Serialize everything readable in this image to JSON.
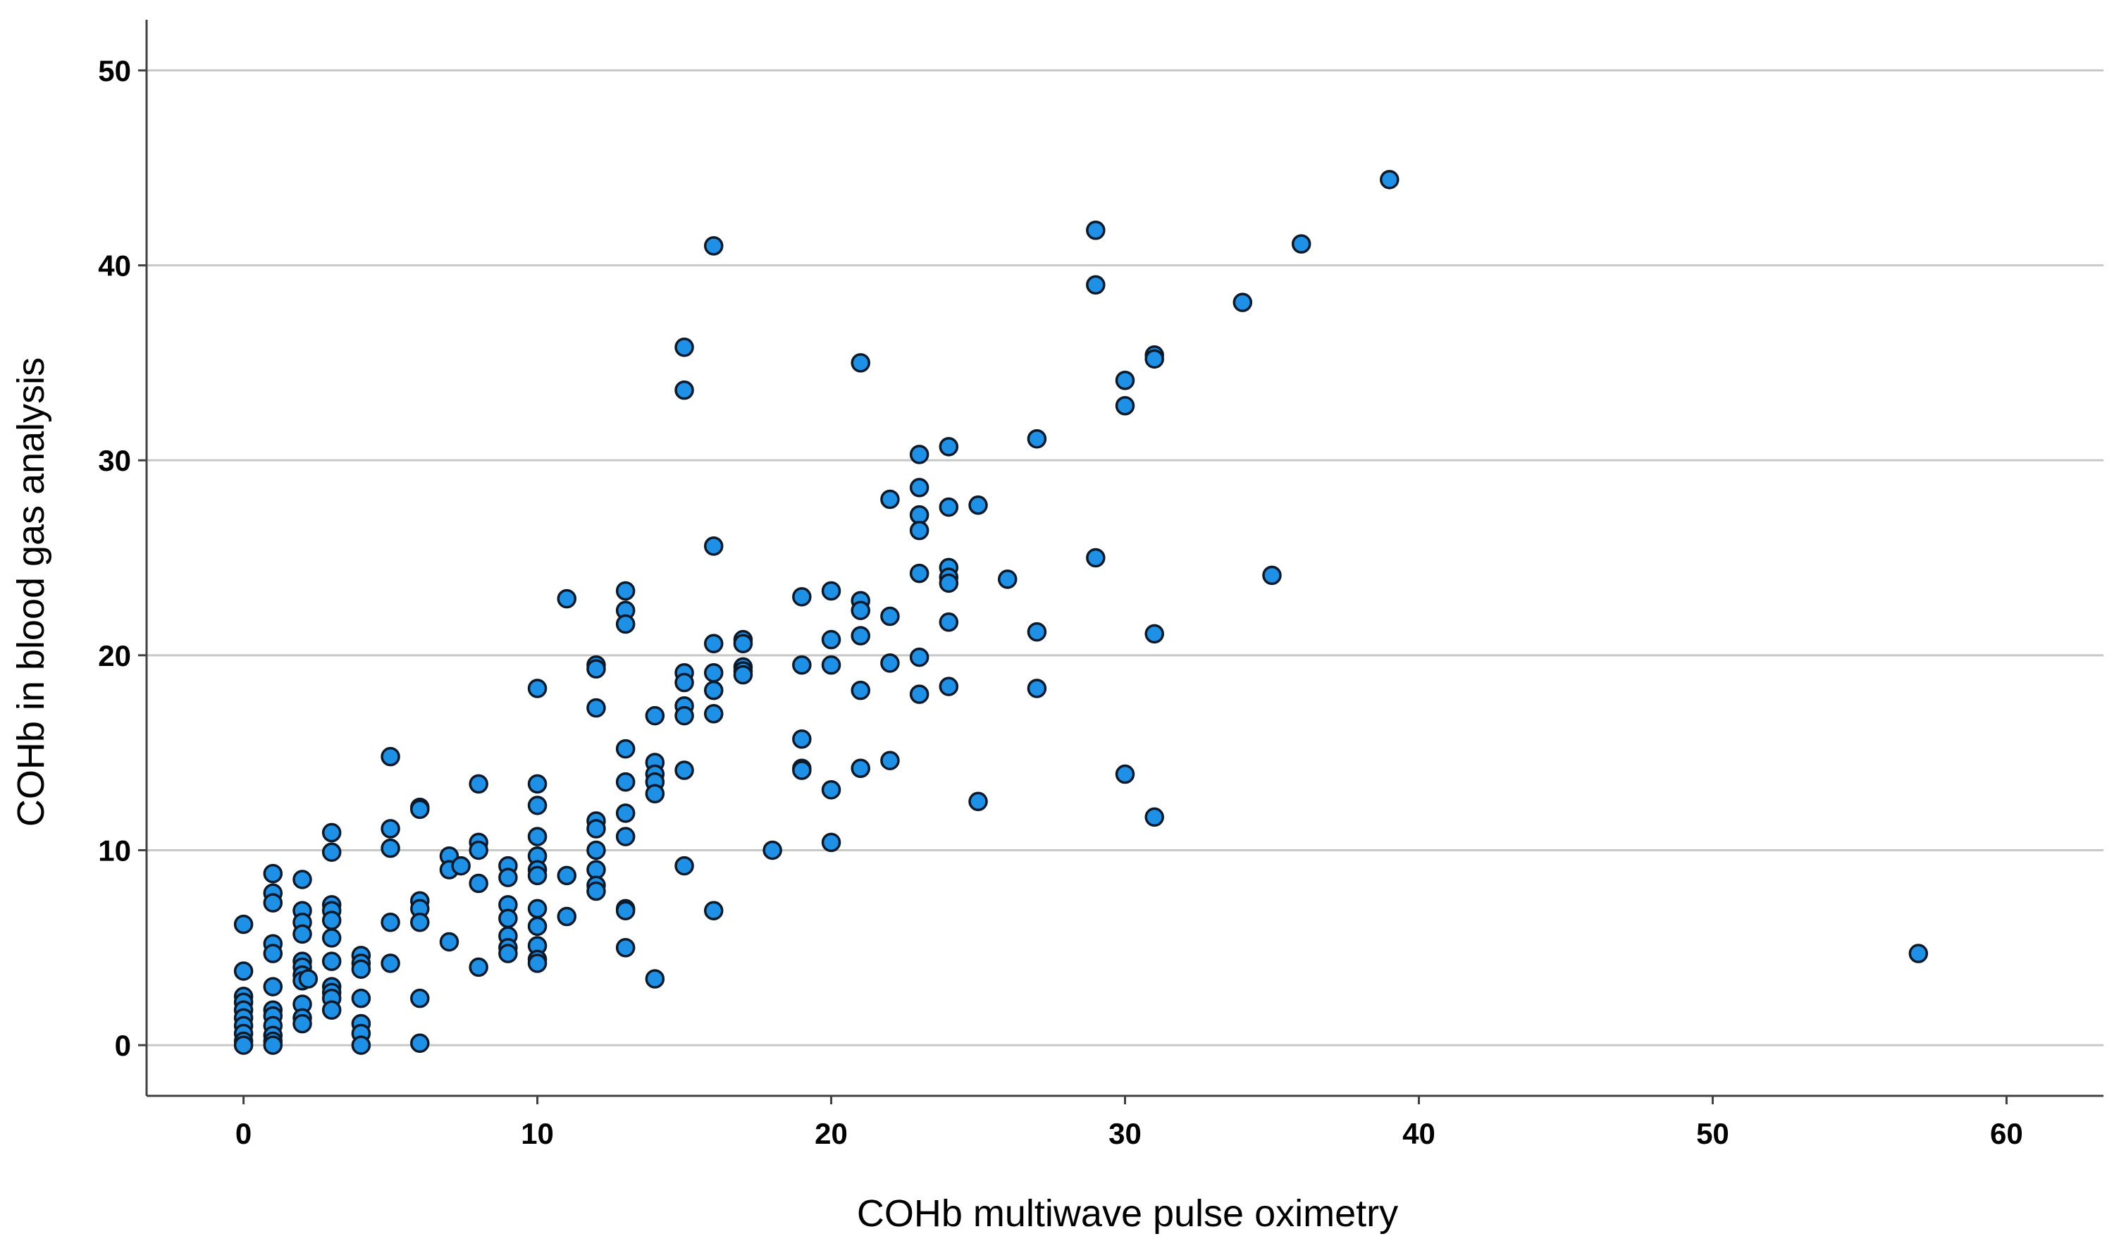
{
  "colors": {
    "background": "#ffffff",
    "gridline": "#c8c8c8",
    "axis": "#404040",
    "point_fill": "#1e90e6",
    "point_stroke": "#0a1a2a"
  },
  "chart_data": {
    "type": "scatter",
    "title": "",
    "xlabel": "COHb multiwave pulse oximetry",
    "ylabel": "COHb in blood gas analysis",
    "xlim": [
      -3.3,
      63.3
    ],
    "ylim": [
      -2.6,
      52.6
    ],
    "xticks": [
      0,
      10,
      20,
      30,
      40,
      50,
      60
    ],
    "yticks": [
      0,
      10,
      20,
      30,
      40,
      50
    ],
    "xtick_labels": [
      "0",
      "10",
      "20",
      "30",
      "40",
      "50",
      "60"
    ],
    "ytick_labels": [
      "0",
      "10",
      "20",
      "30",
      "40",
      "50"
    ],
    "grid": "horizontal",
    "legend": "none",
    "points": [
      [
        0,
        6.2
      ],
      [
        0,
        3.8
      ],
      [
        0,
        2.5
      ],
      [
        0,
        2.2
      ],
      [
        0,
        1.8
      ],
      [
        0,
        1.4
      ],
      [
        0,
        1.0
      ],
      [
        0,
        0.6
      ],
      [
        0,
        0.2
      ],
      [
        0,
        0.0
      ],
      [
        1,
        8.8
      ],
      [
        1,
        7.8
      ],
      [
        1,
        7.3
      ],
      [
        1,
        5.2
      ],
      [
        1,
        4.7
      ],
      [
        1,
        3.0
      ],
      [
        1,
        1.8
      ],
      [
        1,
        1.5
      ],
      [
        1,
        1.0
      ],
      [
        1,
        0.5
      ],
      [
        1,
        0.2
      ],
      [
        1,
        0.0
      ],
      [
        2,
        8.5
      ],
      [
        2,
        6.9
      ],
      [
        2,
        6.3
      ],
      [
        2,
        5.7
      ],
      [
        2,
        4.3
      ],
      [
        2,
        4.0
      ],
      [
        2,
        3.6
      ],
      [
        2,
        3.3
      ],
      [
        2,
        2.1
      ],
      [
        2,
        1.4
      ],
      [
        2,
        1.1
      ],
      [
        2.2,
        3.4
      ],
      [
        3,
        10.9
      ],
      [
        3,
        9.9
      ],
      [
        3,
        7.2
      ],
      [
        3,
        6.9
      ],
      [
        3,
        6.4
      ],
      [
        3,
        5.5
      ],
      [
        3,
        4.3
      ],
      [
        3,
        3.0
      ],
      [
        3,
        2.7
      ],
      [
        3,
        2.4
      ],
      [
        3,
        1.8
      ],
      [
        4,
        4.6
      ],
      [
        4,
        4.2
      ],
      [
        4,
        3.9
      ],
      [
        4,
        2.4
      ],
      [
        4,
        1.1
      ],
      [
        4,
        0.6
      ],
      [
        4,
        0.0
      ],
      [
        5,
        14.8
      ],
      [
        5,
        11.1
      ],
      [
        5,
        10.1
      ],
      [
        5,
        6.3
      ],
      [
        5,
        4.2
      ],
      [
        6,
        12.2
      ],
      [
        6,
        12.1
      ],
      [
        6,
        7.4
      ],
      [
        6,
        7.0
      ],
      [
        6,
        6.3
      ],
      [
        6,
        2.4
      ],
      [
        6,
        0.1
      ],
      [
        7,
        9.7
      ],
      [
        7,
        9.0
      ],
      [
        7,
        5.3
      ],
      [
        7.4,
        9.2
      ],
      [
        8,
        13.4
      ],
      [
        8,
        10.4
      ],
      [
        8,
        10.0
      ],
      [
        8,
        8.3
      ],
      [
        8,
        4.0
      ],
      [
        9,
        9.2
      ],
      [
        9,
        8.6
      ],
      [
        9,
        7.2
      ],
      [
        9,
        6.5
      ],
      [
        9,
        5.6
      ],
      [
        9,
        5.0
      ],
      [
        9,
        4.7
      ],
      [
        10,
        18.3
      ],
      [
        10,
        13.4
      ],
      [
        10,
        12.3
      ],
      [
        10,
        10.7
      ],
      [
        10,
        9.7
      ],
      [
        10,
        9.0
      ],
      [
        10,
        8.7
      ],
      [
        10,
        7.0
      ],
      [
        10,
        6.1
      ],
      [
        10,
        5.1
      ],
      [
        10,
        4.4
      ],
      [
        10,
        4.2
      ],
      [
        11,
        22.9
      ],
      [
        11,
        8.7
      ],
      [
        11,
        6.6
      ],
      [
        12,
        19.5
      ],
      [
        12,
        19.3
      ],
      [
        12,
        17.3
      ],
      [
        12,
        11.5
      ],
      [
        12,
        11.1
      ],
      [
        12,
        10.0
      ],
      [
        12,
        9.0
      ],
      [
        12,
        8.2
      ],
      [
        12,
        7.9
      ],
      [
        13,
        23.3
      ],
      [
        13,
        22.3
      ],
      [
        13,
        21.6
      ],
      [
        13,
        15.2
      ],
      [
        13,
        13.5
      ],
      [
        13,
        11.9
      ],
      [
        13,
        10.7
      ],
      [
        13,
        7.0
      ],
      [
        13,
        6.9
      ],
      [
        13,
        5.0
      ],
      [
        14,
        16.9
      ],
      [
        14,
        14.5
      ],
      [
        14,
        13.9
      ],
      [
        14,
        13.5
      ],
      [
        14,
        12.9
      ],
      [
        14,
        3.4
      ],
      [
        15,
        35.8
      ],
      [
        15,
        33.6
      ],
      [
        15,
        19.1
      ],
      [
        15,
        18.6
      ],
      [
        15,
        17.4
      ],
      [
        15,
        16.9
      ],
      [
        15,
        14.1
      ],
      [
        15,
        9.2
      ],
      [
        16,
        41.0
      ],
      [
        16,
        25.6
      ],
      [
        16,
        20.6
      ],
      [
        16,
        19.1
      ],
      [
        16,
        18.2
      ],
      [
        16,
        17.0
      ],
      [
        16,
        6.9
      ],
      [
        17,
        20.8
      ],
      [
        17,
        20.6
      ],
      [
        17,
        19.4
      ],
      [
        17,
        19.2
      ],
      [
        17,
        19.0
      ],
      [
        18,
        10.0
      ],
      [
        19,
        23.0
      ],
      [
        19,
        19.5
      ],
      [
        19,
        15.7
      ],
      [
        19,
        14.2
      ],
      [
        19,
        14.1
      ],
      [
        20,
        23.3
      ],
      [
        20,
        20.8
      ],
      [
        20,
        19.5
      ],
      [
        20,
        13.1
      ],
      [
        20,
        10.4
      ],
      [
        21,
        35.0
      ],
      [
        21,
        22.8
      ],
      [
        21,
        22.3
      ],
      [
        21,
        21.0
      ],
      [
        21,
        18.2
      ],
      [
        21,
        14.2
      ],
      [
        22,
        28.0
      ],
      [
        22,
        22.0
      ],
      [
        22,
        19.6
      ],
      [
        22,
        14.6
      ],
      [
        23,
        30.3
      ],
      [
        23,
        28.6
      ],
      [
        23,
        27.2
      ],
      [
        23,
        26.4
      ],
      [
        23,
        24.2
      ],
      [
        23,
        19.9
      ],
      [
        23,
        18.0
      ],
      [
        24,
        30.7
      ],
      [
        24,
        27.6
      ],
      [
        24,
        24.5
      ],
      [
        24,
        24.0
      ],
      [
        24,
        23.7
      ],
      [
        24,
        21.7
      ],
      [
        24,
        18.4
      ],
      [
        25,
        27.7
      ],
      [
        25,
        12.5
      ],
      [
        26,
        23.9
      ],
      [
        27,
        31.1
      ],
      [
        27,
        21.2
      ],
      [
        27,
        18.3
      ],
      [
        29,
        41.8
      ],
      [
        29,
        39.0
      ],
      [
        29,
        25.0
      ],
      [
        30,
        34.1
      ],
      [
        30,
        32.8
      ],
      [
        30,
        13.9
      ],
      [
        31,
        35.4
      ],
      [
        31,
        35.2
      ],
      [
        31,
        21.1
      ],
      [
        31,
        11.7
      ],
      [
        34,
        38.1
      ],
      [
        35,
        24.1
      ],
      [
        36,
        41.1
      ],
      [
        39,
        44.4
      ],
      [
        57,
        4.7
      ]
    ]
  }
}
